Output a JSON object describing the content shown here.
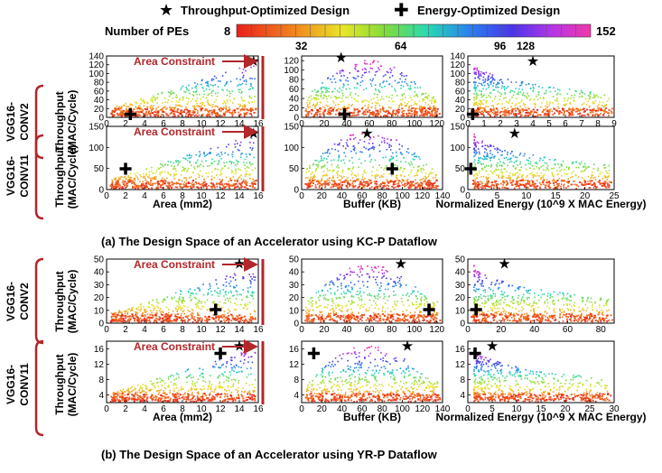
{
  "legend": {
    "throughput_label": "Throughput-Optimized Design",
    "energy_label": "Energy-Optimized Design",
    "pe_label": "Number of PEs",
    "pe_ticks_top": [
      "8",
      "152"
    ],
    "pe_ticks_bottom": [
      "32",
      "64",
      "96",
      "128"
    ],
    "pe_range": [
      8,
      152
    ]
  },
  "sections": [
    {
      "caption": "(a) The Design Space of an Accelerator using KC-P Dataflow",
      "rows": [
        {
          "layer_line1": "VGG16-",
          "layer_line2": "CONV2",
          "ylabel_line1": "Throughput",
          "ylabel_line2": "(MAC/Cycle)"
        },
        {
          "layer_line1": "VGG16-",
          "layer_line2": "CONV11",
          "ylabel_line1": "Throughput",
          "ylabel_line2": "(MAC/Cycle)"
        }
      ]
    },
    {
      "caption": "(b) The Design Space of an Accelerator using YR-P Dataflow",
      "rows": [
        {
          "layer_line1": "VGG16-",
          "layer_line2": "CONV2",
          "ylabel_line1": "Throughput",
          "ylabel_line2": "(MAC/Cycle)"
        },
        {
          "layer_line1": "VGG16-",
          "layer_line2": "CONV11",
          "ylabel_line1": "Throughput",
          "ylabel_line2": "(MAC/Cycle)"
        }
      ]
    }
  ],
  "annotations": {
    "area_constraint": "Area Constraint"
  },
  "colors": {
    "annotation_red": "#b3262a"
  },
  "chart_data": [
    {
      "type": "scatter",
      "dataflow": "KC-P",
      "layer": "VGG16-CONV2",
      "xlabel": "",
      "ylabel": "Throughput (MAC/Cycle)",
      "x_ticks": [
        0,
        2,
        4,
        6,
        8,
        10,
        12,
        14,
        16
      ],
      "y_ticks": [
        0,
        20,
        40,
        60,
        80,
        100,
        120,
        140
      ],
      "xlim": [
        0,
        16
      ],
      "ylim": [
        0,
        140
      ],
      "throughput_opt": {
        "x": 15.5,
        "y": 130
      },
      "energy_opt": {
        "x": 2.5,
        "y": 8
      }
    },
    {
      "type": "scatter",
      "dataflow": "KC-P",
      "layer": "VGG16-CONV2",
      "xlabel": "",
      "ylabel": "",
      "x_ticks": [
        0,
        20,
        40,
        60,
        80,
        100,
        120
      ],
      "y_ticks": [
        0,
        20,
        40,
        60,
        80,
        100,
        120
      ],
      "xlim": [
        0,
        125
      ],
      "ylim": [
        0,
        130
      ],
      "throughput_opt": {
        "x": 35,
        "y": 128
      },
      "energy_opt": {
        "x": 38,
        "y": 8
      }
    },
    {
      "type": "scatter",
      "dataflow": "KC-P",
      "layer": "VGG16-CONV2",
      "xlabel": "",
      "ylabel": "",
      "x_ticks": [
        0,
        1,
        2,
        3,
        4,
        5,
        6,
        7,
        8,
        9
      ],
      "y_ticks": [
        0,
        20,
        40,
        60,
        80,
        100,
        120,
        140
      ],
      "xlim": [
        0,
        9
      ],
      "ylim": [
        0,
        140
      ],
      "throughput_opt": {
        "x": 4,
        "y": 130
      },
      "energy_opt": {
        "x": 0.3,
        "y": 8
      }
    },
    {
      "type": "scatter",
      "dataflow": "KC-P",
      "layer": "VGG16-CONV11",
      "xlabel": "Area (mm2)",
      "ylabel": "Throughput (MAC/Cycle)",
      "x_ticks": [
        0,
        2,
        4,
        6,
        8,
        10,
        12,
        14,
        16
      ],
      "y_ticks": [
        0,
        50,
        100,
        150
      ],
      "xlim": [
        0,
        16
      ],
      "ylim": [
        0,
        150
      ],
      "throughput_opt": {
        "x": 15.5,
        "y": 135
      },
      "energy_opt": {
        "x": 2,
        "y": 50
      }
    },
    {
      "type": "scatter",
      "dataflow": "KC-P",
      "layer": "VGG16-CONV11",
      "xlabel": "Buffer (KB)",
      "ylabel": "",
      "x_ticks": [
        0,
        20,
        40,
        60,
        80,
        100,
        120,
        140
      ],
      "y_ticks": [
        0,
        50,
        100,
        150
      ],
      "xlim": [
        0,
        140
      ],
      "ylim": [
        0,
        150
      ],
      "throughput_opt": {
        "x": 65,
        "y": 135
      },
      "energy_opt": {
        "x": 90,
        "y": 50
      }
    },
    {
      "type": "scatter",
      "dataflow": "KC-P",
      "layer": "VGG16-CONV11",
      "xlabel": "Normalized Energy (10^9 X MAC Energy)",
      "ylabel": "",
      "x_ticks": [
        0,
        5,
        10,
        15,
        20,
        25
      ],
      "y_ticks": [
        0,
        50,
        100,
        150
      ],
      "xlim": [
        0,
        25
      ],
      "ylim": [
        0,
        150
      ],
      "throughput_opt": {
        "x": 8,
        "y": 135
      },
      "energy_opt": {
        "x": 0.5,
        "y": 50
      }
    },
    {
      "type": "scatter",
      "dataflow": "YR-P",
      "layer": "VGG16-CONV2",
      "xlabel": "",
      "ylabel": "Throughput (MAC/Cycle)",
      "x_ticks": [
        0,
        2,
        4,
        6,
        8,
        10,
        12,
        14,
        16
      ],
      "y_ticks": [
        0,
        10,
        20,
        30,
        40,
        50
      ],
      "xlim": [
        0,
        16
      ],
      "ylim": [
        0,
        50
      ],
      "throughput_opt": {
        "x": 14,
        "y": 47
      },
      "energy_opt": {
        "x": 11.5,
        "y": 11
      }
    },
    {
      "type": "scatter",
      "dataflow": "YR-P",
      "layer": "VGG16-CONV2",
      "xlabel": "",
      "ylabel": "",
      "x_ticks": [
        0,
        20,
        40,
        60,
        80,
        100,
        120
      ],
      "y_ticks": [
        0,
        10,
        20,
        30,
        40,
        50
      ],
      "xlim": [
        0,
        125
      ],
      "ylim": [
        0,
        50
      ],
      "throughput_opt": {
        "x": 88,
        "y": 47
      },
      "energy_opt": {
        "x": 113,
        "y": 11
      }
    },
    {
      "type": "scatter",
      "dataflow": "YR-P",
      "layer": "VGG16-CONV2",
      "xlabel": "",
      "ylabel": "",
      "x_ticks": [
        0,
        20,
        40,
        60,
        80
      ],
      "y_ticks": [
        0,
        10,
        20,
        30,
        40,
        50
      ],
      "xlim": [
        0,
        88
      ],
      "ylim": [
        0,
        50
      ],
      "throughput_opt": {
        "x": 22,
        "y": 47
      },
      "energy_opt": {
        "x": 5,
        "y": 11
      }
    },
    {
      "type": "scatter",
      "dataflow": "YR-P",
      "layer": "VGG16-CONV11",
      "xlabel": "Area (mm2)",
      "ylabel": "Throughput (MAC/Cycle)",
      "x_ticks": [
        0,
        2,
        4,
        6,
        8,
        10,
        12,
        14,
        16
      ],
      "y_ticks": [
        4,
        8,
        12,
        16
      ],
      "xlim": [
        0,
        16
      ],
      "ylim": [
        2,
        18
      ],
      "throughput_opt": {
        "x": 14,
        "y": 17
      },
      "energy_opt": {
        "x": 12,
        "y": 15
      }
    },
    {
      "type": "scatter",
      "dataflow": "YR-P",
      "layer": "VGG16-CONV11",
      "xlabel": "Buffer (KB)",
      "ylabel": "",
      "x_ticks": [
        0,
        20,
        40,
        60,
        80,
        100,
        120,
        140
      ],
      "y_ticks": [
        4,
        8,
        12,
        16
      ],
      "xlim": [
        0,
        140
      ],
      "ylim": [
        2,
        18
      ],
      "throughput_opt": {
        "x": 105,
        "y": 17
      },
      "energy_opt": {
        "x": 12,
        "y": 15
      }
    },
    {
      "type": "scatter",
      "dataflow": "YR-P",
      "layer": "VGG16-CONV11",
      "xlabel": "Normalized Energy (10^9 X MAC Energy)",
      "ylabel": "",
      "x_ticks": [
        0,
        5,
        10,
        15,
        20,
        25,
        30
      ],
      "y_ticks": [
        4,
        8,
        12,
        16
      ],
      "xlim": [
        0,
        30
      ],
      "ylim": [
        2,
        18
      ],
      "throughput_opt": {
        "x": 5,
        "y": 17
      },
      "energy_opt": {
        "x": 1.5,
        "y": 15
      }
    }
  ]
}
